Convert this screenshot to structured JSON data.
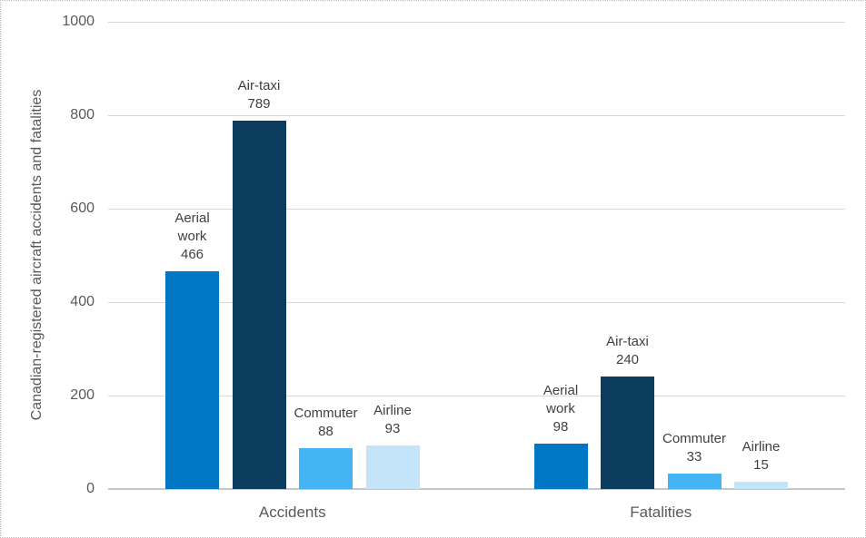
{
  "figure": {
    "background_color": "#FFFFFF",
    "border_color": "#BFBFBF",
    "gridline_color": "#D9D9D9",
    "axis_line_color": "#C6C6C6",
    "tick_text_color": "#595959",
    "data_label_text_color": "#404040"
  },
  "chart_data": {
    "type": "bar",
    "title": "",
    "xlabel": "",
    "ylabel": "Canadian-registered aircraft accidents and fatalities",
    "ylim": [
      0,
      1000
    ],
    "yticks": [
      0,
      200,
      400,
      600,
      800,
      1000
    ],
    "grid": "horizontal gridlines on, vertical off",
    "legend_position": "none (series labeled directly above bars)",
    "categories": [
      "Accidents",
      "Fatalities"
    ],
    "series": [
      {
        "name": "Aerial work",
        "label_lines": [
          "Aerial",
          "work"
        ],
        "color": "#0077C2",
        "values": [
          466,
          98
        ]
      },
      {
        "name": "Air-taxi",
        "label_lines": [
          "Air-taxi"
        ],
        "color": "#0D3D5E",
        "values": [
          789,
          240
        ]
      },
      {
        "name": "Commuter",
        "label_lines": [
          "Commuter"
        ],
        "color": "#44B4F5",
        "values": [
          88,
          33
        ]
      },
      {
        "name": "Airline",
        "label_lines": [
          "Airline"
        ],
        "color": "#C4E4FA",
        "values": [
          93,
          15
        ]
      }
    ]
  }
}
